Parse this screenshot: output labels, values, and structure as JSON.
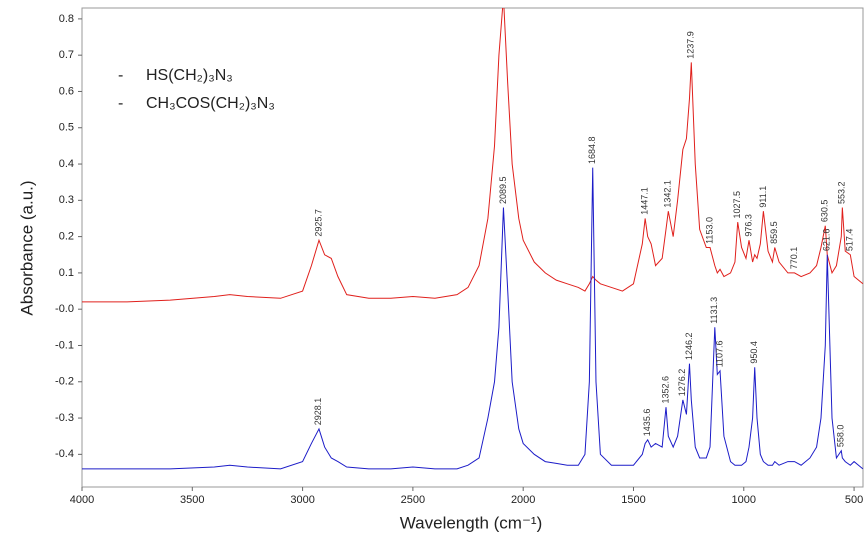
{
  "chart_data": {
    "type": "line",
    "xlabel": "Wavelength (cm⁻¹)",
    "ylabel": "Absorbance (a.u.)",
    "xlim": [
      4000,
      455
    ],
    "ylim": [
      -0.49,
      0.83
    ],
    "xticks": [
      4000,
      3500,
      3000,
      2500,
      2000,
      1500,
      1000,
      500
    ],
    "yticks": [
      0.8,
      0.7,
      0.6,
      0.5,
      0.4,
      0.3,
      0.2,
      0.1,
      {
        "value": 0,
        "label": "-0.0"
      },
      -0.1,
      -0.2,
      -0.3,
      -0.4
    ],
    "x": [
      4000,
      3800,
      3600,
      3400,
      3330,
      3250,
      3100,
      3000,
      2960,
      2925.7,
      2900,
      2870,
      2840,
      2800,
      2700,
      2600,
      2500,
      2400,
      2300,
      2250,
      2200,
      2160,
      2130,
      2110,
      2089.5,
      2070,
      2050,
      2020,
      2000,
      1950,
      1900,
      1850,
      1800,
      1750,
      1720,
      1700,
      1684.8,
      1670,
      1650,
      1600,
      1550,
      1500,
      1460,
      1447.1,
      1435.6,
      1420,
      1400,
      1370,
      1352.6,
      1342.1,
      1320,
      1300,
      1276.2,
      1260,
      1246.2,
      1237.9,
      1220,
      1200,
      1170,
      1153,
      1131.3,
      1120,
      1107.6,
      1090,
      1060,
      1040,
      1027.5,
      1010,
      990,
      976.3,
      960,
      950.4,
      940,
      925,
      911.1,
      890,
      870,
      859.5,
      840,
      800,
      770.1,
      740,
      700,
      670,
      650,
      630.5,
      621.6,
      600,
      580,
      558,
      553.2,
      540,
      517,
      500,
      480,
      460
    ],
    "series": [
      {
        "name": "HS(CH₂)₃N₃",
        "color": "#e0201c",
        "values": [
          0.02,
          0.02,
          0.025,
          0.035,
          0.04,
          0.035,
          0.03,
          0.05,
          0.12,
          0.19,
          0.15,
          0.14,
          0.09,
          0.04,
          0.03,
          0.03,
          0.035,
          0.03,
          0.04,
          0.06,
          0.12,
          0.25,
          0.45,
          0.7,
          0.86,
          0.62,
          0.4,
          0.25,
          0.19,
          0.13,
          0.1,
          0.08,
          0.07,
          0.06,
          0.05,
          0.07,
          0.09,
          0.08,
          0.07,
          0.06,
          0.05,
          0.07,
          0.18,
          0.25,
          0.2,
          0.18,
          0.12,
          0.14,
          0.22,
          0.27,
          0.2,
          0.3,
          0.44,
          0.47,
          0.58,
          0.68,
          0.4,
          0.22,
          0.17,
          0.17,
          0.12,
          0.1,
          0.11,
          0.09,
          0.1,
          0.13,
          0.24,
          0.17,
          0.14,
          0.19,
          0.13,
          0.15,
          0.14,
          0.18,
          0.27,
          0.16,
          0.13,
          0.17,
          0.13,
          0.1,
          0.1,
          0.09,
          0.1,
          0.12,
          0.17,
          0.23,
          0.15,
          0.1,
          0.12,
          0.2,
          0.28,
          0.16,
          0.15,
          0.09,
          0.08,
          0.07
        ]
      },
      {
        "name": "CH₃COS(CH₂)₃N₃",
        "color": "#1c1cc8",
        "values": [
          -0.44,
          -0.44,
          -0.44,
          -0.435,
          -0.43,
          -0.435,
          -0.44,
          -0.42,
          -0.37,
          -0.33,
          -0.38,
          -0.41,
          -0.42,
          -0.435,
          -0.44,
          -0.44,
          -0.435,
          -0.44,
          -0.44,
          -0.43,
          -0.41,
          -0.3,
          -0.2,
          -0.05,
          0.28,
          0.05,
          -0.2,
          -0.33,
          -0.37,
          -0.4,
          -0.42,
          -0.425,
          -0.43,
          -0.43,
          -0.4,
          -0.2,
          0.39,
          -0.2,
          -0.4,
          -0.43,
          -0.43,
          -0.43,
          -0.4,
          -0.37,
          -0.36,
          -0.38,
          -0.37,
          -0.38,
          -0.27,
          -0.35,
          -0.38,
          -0.35,
          -0.25,
          -0.29,
          -0.15,
          -0.25,
          -0.38,
          -0.41,
          -0.41,
          -0.38,
          -0.05,
          -0.18,
          -0.17,
          -0.35,
          -0.42,
          -0.43,
          -0.43,
          -0.43,
          -0.42,
          -0.38,
          -0.3,
          -0.16,
          -0.3,
          -0.4,
          -0.42,
          -0.43,
          -0.43,
          -0.42,
          -0.43,
          -0.42,
          -0.42,
          -0.43,
          -0.41,
          -0.38,
          -0.3,
          -0.1,
          0.15,
          -0.3,
          -0.41,
          -0.39,
          -0.41,
          -0.42,
          -0.43,
          -0.42,
          -0.43,
          -0.44
        ]
      }
    ],
    "annotations": [
      {
        "label": "2925.7",
        "x": 2925.7,
        "y": 0.2
      },
      {
        "label": "1447.1",
        "x": 1447.1,
        "y": 0.26
      },
      {
        "label": "1342.1",
        "x": 1342.1,
        "y": 0.28
      },
      {
        "label": "1237.9",
        "x": 1237.9,
        "y": 0.69
      },
      {
        "label": "1153.0",
        "x": 1153,
        "y": 0.18
      },
      {
        "label": "1027.5",
        "x": 1027.5,
        "y": 0.25
      },
      {
        "label": "976.3",
        "x": 976.3,
        "y": 0.2
      },
      {
        "label": "911.1",
        "x": 911.1,
        "y": 0.28
      },
      {
        "label": "859.5",
        "x": 859.5,
        "y": 0.18
      },
      {
        "label": "770.1",
        "x": 770.1,
        "y": 0.11
      },
      {
        "label": "630.5",
        "x": 630.5,
        "y": 0.24
      },
      {
        "label": "621.6",
        "x": 621.6,
        "y": 0.16
      },
      {
        "label": "553.2",
        "x": 553.2,
        "y": 0.29
      },
      {
        "label": "517.4",
        "x": 517.4,
        "y": 0.16
      },
      {
        "label": "2928.1",
        "x": 2928.1,
        "y": -0.32
      },
      {
        "label": "2089.5",
        "x": 2089.5,
        "y": 0.29
      },
      {
        "label": "1684.8",
        "x": 1684.8,
        "y": 0.4
      },
      {
        "label": "1435.6",
        "x": 1435.6,
        "y": -0.35
      },
      {
        "label": "1352.6",
        "x": 1352.6,
        "y": -0.26
      },
      {
        "label": "1276.2",
        "x": 1276.2,
        "y": -0.24
      },
      {
        "label": "1246.2",
        "x": 1246.2,
        "y": -0.14
      },
      {
        "label": "1131.3",
        "x": 1131.3,
        "y": -0.04
      },
      {
        "label": "1107.6",
        "x": 1107.6,
        "y": -0.16
      },
      {
        "label": "950.4",
        "x": 950.4,
        "y": -0.15
      },
      {
        "label": "558.0",
        "x": 558,
        "y": -0.38
      }
    ]
  }
}
